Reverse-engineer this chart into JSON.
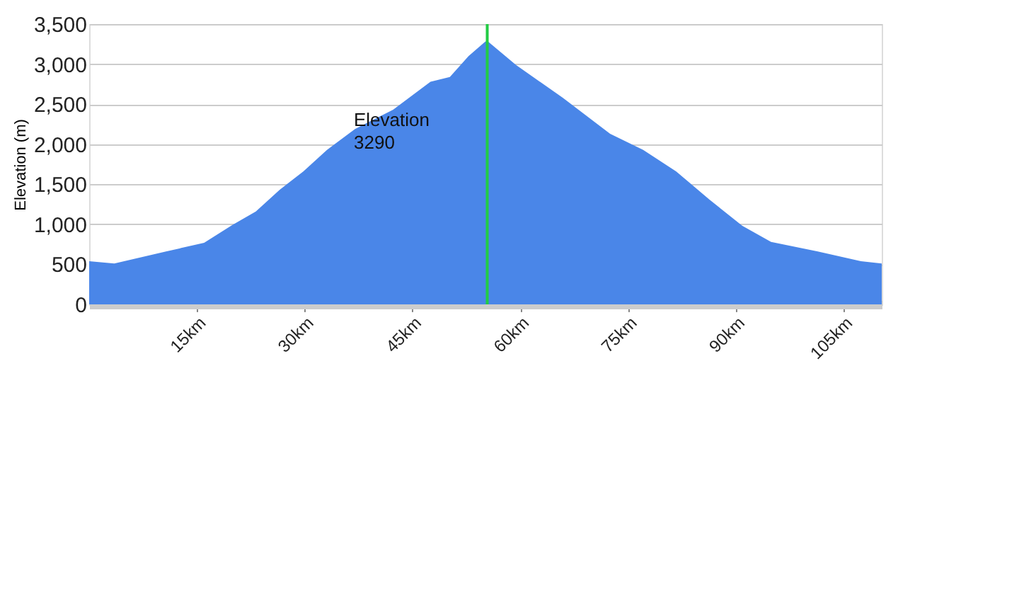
{
  "chart_data": {
    "type": "area",
    "ylabel": "Elevation (m)",
    "x": [
      0,
      3.5,
      10.7,
      16,
      19.9,
      23.2,
      26.5,
      29.8,
      33.1,
      37,
      42.3,
      47.5,
      50.2,
      52.8,
      55.1,
      55.4,
      59.4,
      65.9,
      72.5,
      77.1,
      81.7,
      86.3,
      90.9,
      94.9,
      101.4,
      107.4,
      110.3
    ],
    "series": [
      {
        "color": "#4a86e8",
        "values": [
          540,
          510,
          660,
          770,
          990,
          1160,
          1430,
          1660,
          1930,
          2190,
          2430,
          2780,
          2840,
          3100,
          3280,
          3290,
          2990,
          2580,
          2130,
          1930,
          1660,
          1310,
          980,
          780,
          660,
          540,
          510
        ]
      }
    ],
    "xlim": [
      0,
      110.3
    ],
    "xticks": [
      {
        "value": 15,
        "label": "15km"
      },
      {
        "value": 30,
        "label": "30km"
      },
      {
        "value": 45,
        "label": "45km"
      },
      {
        "value": 60,
        "label": "60km"
      },
      {
        "value": 75,
        "label": "75km"
      },
      {
        "value": 90,
        "label": "90km"
      },
      {
        "value": 105,
        "label": "105km"
      }
    ],
    "ylim": [
      0,
      3500
    ],
    "yticks": [
      {
        "value": 0,
        "label": "0"
      },
      {
        "value": 500,
        "label": "500"
      },
      {
        "value": 1000,
        "label": "1,000"
      },
      {
        "value": 1500,
        "label": "1,500"
      },
      {
        "value": 2000,
        "label": "2,000"
      },
      {
        "value": 2500,
        "label": "2,500"
      },
      {
        "value": 3000,
        "label": "3,000"
      },
      {
        "value": 3500,
        "label": "3,500"
      }
    ],
    "grid": "y",
    "ref_lines": [
      {
        "axis": "x",
        "value": 55.4,
        "label": null,
        "color": "#22cc44"
      }
    ],
    "annotations": [
      "Elevation",
      "3290"
    ]
  }
}
